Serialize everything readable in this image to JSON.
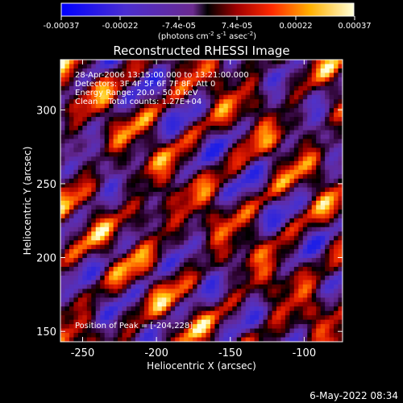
{
  "colorbar": {
    "tick_labels": [
      "-0.00037",
      "-0.00022",
      "-7.4e-05",
      "7.4e-05",
      "0.00022",
      "0.00037"
    ],
    "units": "(photons cm",
    "units_exp1": "-2",
    "units_mid": " s",
    "units_exp2": "-1",
    "units_end": " asec",
    "units_exp3": "-2",
    "units_close": ")",
    "range": [
      -0.00037,
      0.00037
    ]
  },
  "chart_data": {
    "type": "heatmap",
    "title": "Reconstructed RHESSI Image",
    "xlabel": "Heliocentric X (arcsec)",
    "ylabel": "Heliocentric Y (arcsec)",
    "xlim": [
      -265,
      -74
    ],
    "ylim": [
      143,
      334
    ],
    "xticks": [
      -250,
      -200,
      -150,
      -100
    ],
    "yticks": [
      150,
      200,
      250,
      300
    ],
    "xtick_labels": [
      "-250",
      "-200",
      "-150",
      "-100"
    ],
    "ytick_labels": [
      "150",
      "200",
      "250",
      "300"
    ],
    "annotations": [
      "28-Apr-2006 13:15:00.000 to 13:21:00.000",
      "Detectors: 3F 4F 5F 6F 7F 8F, Att 0",
      "Energy Range: 20.0 - 50.0 keV",
      "Clean    Total counts: 1.27E+04"
    ],
    "peak_label": "Position of Peak = [-204,228]",
    "peak_position": [
      -204,
      228
    ],
    "grid": false
  },
  "footer": {
    "timestamp": "6-May-2022 08:34"
  }
}
